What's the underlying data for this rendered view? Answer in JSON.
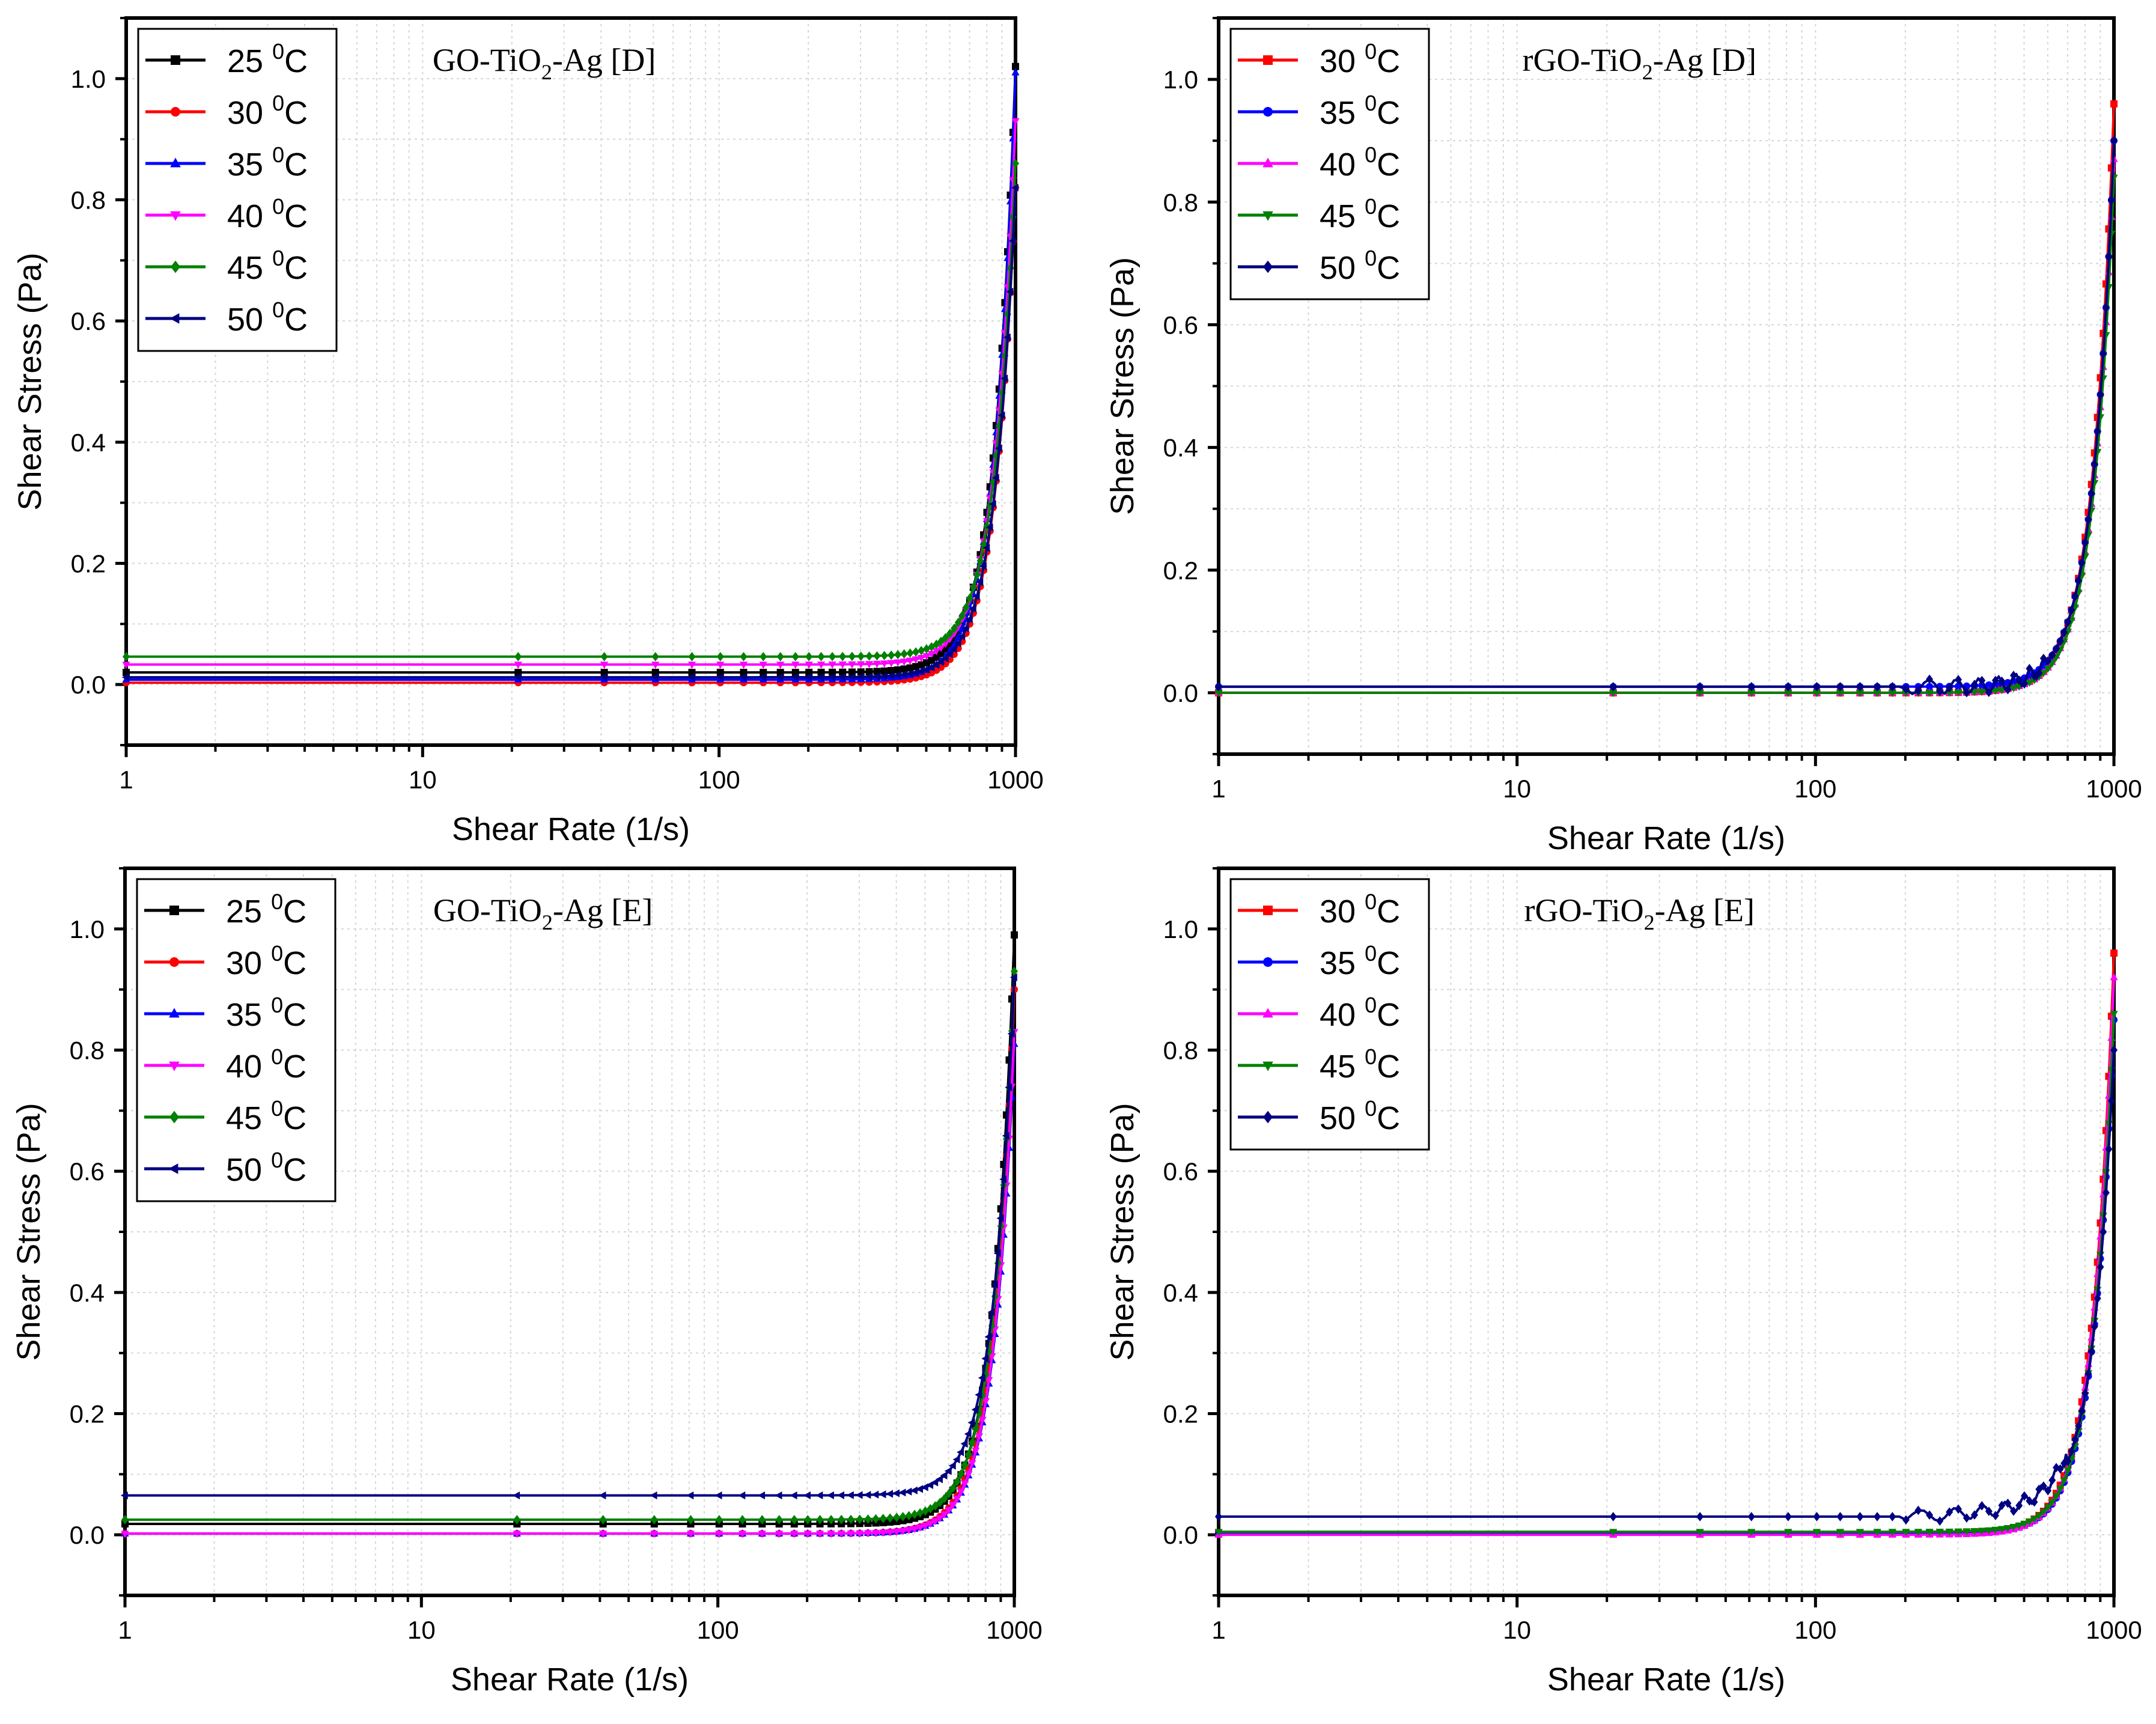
{
  "chart_data": [
    {
      "type": "line",
      "panel": "top-left",
      "title": "GO-TiO2-Ag [D]",
      "title_parts": [
        "GO-TiO",
        "2",
        "-Ag [D]"
      ],
      "xlabel": "Shear Rate (1/s)",
      "ylabel": "Shear Stress (Pa)",
      "xscale": "log",
      "xlim": [
        1,
        1000
      ],
      "ylim": [
        -0.1,
        1.1
      ],
      "xticks": [
        1,
        10,
        100,
        1000
      ],
      "xtick_labels": [
        "1",
        "10",
        "100",
        "1000"
      ],
      "yticks": [
        0.0,
        0.2,
        0.4,
        0.6,
        0.8,
        1.0
      ],
      "ytick_labels": [
        "0.0",
        "0.2",
        "0.4",
        "0.6",
        "0.8",
        "1.0"
      ],
      "legend_position": "top-left",
      "series": [
        {
          "name": "25 0C",
          "label_num": "25",
          "label_sup": "0",
          "label_unit": "C",
          "color": "#000000",
          "marker": "square",
          "base": 0.02,
          "end": 1.02
        },
        {
          "name": "30 0C",
          "label_num": "30",
          "label_sup": "0",
          "label_unit": "C",
          "color": "#ff0000",
          "marker": "circle",
          "base": 0.003,
          "end": 0.82
        },
        {
          "name": "35 0C",
          "label_num": "35",
          "label_sup": "0",
          "label_unit": "C",
          "color": "#0000ff",
          "marker": "triangle-up",
          "base": 0.008,
          "end": 1.01
        },
        {
          "name": "40 0C",
          "label_num": "40",
          "label_sup": "0",
          "label_unit": "C",
          "color": "#ff00ff",
          "marker": "triangle-down",
          "base": 0.033,
          "end": 0.93
        },
        {
          "name": "45 0C",
          "label_num": "45",
          "label_sup": "0",
          "label_unit": "C",
          "color": "#008000",
          "marker": "diamond",
          "base": 0.046,
          "end": 0.86
        },
        {
          "name": "50 0C",
          "label_num": "50",
          "label_sup": "0",
          "label_unit": "C",
          "color": "#000080",
          "marker": "triangle-left",
          "base": 0.012,
          "end": 0.82
        }
      ]
    },
    {
      "type": "line",
      "panel": "top-right",
      "title": "rGO-TiO2-Ag [D]",
      "title_parts": [
        "rGO-TiO",
        "2",
        "-Ag [D]"
      ],
      "xlabel": "Shear Rate (1/s)",
      "ylabel": "Shear Stress (Pa)",
      "xscale": "log",
      "xlim": [
        1,
        1000
      ],
      "ylim": [
        -0.1,
        1.1
      ],
      "xticks": [
        1,
        10,
        100,
        1000
      ],
      "xtick_labels": [
        "1",
        "10",
        "100",
        "1000"
      ],
      "yticks": [
        0.0,
        0.2,
        0.4,
        0.6,
        0.8,
        1.0
      ],
      "ytick_labels": [
        "0.0",
        "0.2",
        "0.4",
        "0.6",
        "0.8",
        "1.0"
      ],
      "legend_position": "top-left",
      "series": [
        {
          "name": "30 0C",
          "label_num": "30",
          "label_sup": "0",
          "label_unit": "C",
          "color": "#ff0000",
          "marker": "square",
          "base": 0.0,
          "end": 0.96
        },
        {
          "name": "35 0C",
          "label_num": "35",
          "label_sup": "0",
          "label_unit": "C",
          "color": "#0000ff",
          "marker": "circle",
          "base": 0.01,
          "end": 0.9
        },
        {
          "name": "40 0C",
          "label_num": "40",
          "label_sup": "0",
          "label_unit": "C",
          "color": "#ff00ff",
          "marker": "triangle-up",
          "base": 0.0,
          "end": 0.87
        },
        {
          "name": "45 0C",
          "label_num": "45",
          "label_sup": "0",
          "label_unit": "C",
          "color": "#008000",
          "marker": "triangle-down",
          "base": 0.0,
          "end": 0.84
        },
        {
          "name": "50 0C",
          "label_num": "50",
          "label_sup": "0",
          "label_unit": "C",
          "color": "#000080",
          "marker": "diamond",
          "base": 0.01,
          "end": 0.9
        }
      ]
    },
    {
      "type": "line",
      "panel": "bottom-left",
      "title": "GO-TiO2-Ag [E]",
      "title_parts": [
        "GO-TiO",
        "2",
        "-Ag [E]"
      ],
      "xlabel": "Shear Rate (1/s)",
      "ylabel": "Shear Stress (Pa)",
      "xscale": "log",
      "xlim": [
        1,
        1000
      ],
      "ylim": [
        -0.1,
        1.1
      ],
      "xticks": [
        1,
        10,
        100,
        1000
      ],
      "xtick_labels": [
        "1",
        "10",
        "100",
        "1000"
      ],
      "yticks": [
        0.0,
        0.2,
        0.4,
        0.6,
        0.8,
        1.0
      ],
      "ytick_labels": [
        "0.0",
        "0.2",
        "0.4",
        "0.6",
        "0.8",
        "1.0"
      ],
      "legend_position": "top-left",
      "series": [
        {
          "name": "25 0C",
          "label_num": "25",
          "label_sup": "0",
          "label_unit": "C",
          "color": "#000000",
          "marker": "square",
          "base": 0.018,
          "end": 0.99
        },
        {
          "name": "30 0C",
          "label_num": "30",
          "label_sup": "0",
          "label_unit": "C",
          "color": "#ff0000",
          "marker": "circle",
          "base": 0.002,
          "end": 0.9
        },
        {
          "name": "35 0C",
          "label_num": "35",
          "label_sup": "0",
          "label_unit": "C",
          "color": "#0000ff",
          "marker": "triangle-up",
          "base": 0.002,
          "end": 0.81
        },
        {
          "name": "40 0C",
          "label_num": "40",
          "label_sup": "0",
          "label_unit": "C",
          "color": "#ff00ff",
          "marker": "triangle-down",
          "base": 0.002,
          "end": 0.83
        },
        {
          "name": "45 0C",
          "label_num": "45",
          "label_sup": "0",
          "label_unit": "C",
          "color": "#008000",
          "marker": "diamond",
          "base": 0.025,
          "end": 0.93
        },
        {
          "name": "50 0C",
          "label_num": "50",
          "label_sup": "0",
          "label_unit": "C",
          "color": "#000080",
          "marker": "triangle-left",
          "base": 0.065,
          "end": 0.92
        }
      ]
    },
    {
      "type": "line",
      "panel": "bottom-right",
      "title": "rGO-TiO2-Ag [E]",
      "title_parts": [
        "rGO-TiO",
        "2",
        "-Ag [E]"
      ],
      "xlabel": "Shear Rate (1/s)",
      "ylabel": "Shear Stress (Pa)",
      "xscale": "log",
      "xlim": [
        1,
        1000
      ],
      "ylim": [
        -0.1,
        1.1
      ],
      "xticks": [
        1,
        10,
        100,
        1000
      ],
      "xtick_labels": [
        "1",
        "10",
        "100",
        "1000"
      ],
      "yticks": [
        0.0,
        0.2,
        0.4,
        0.6,
        0.8,
        1.0
      ],
      "ytick_labels": [
        "0.0",
        "0.2",
        "0.4",
        "0.6",
        "0.8",
        "1.0"
      ],
      "legend_position": "top-left",
      "series": [
        {
          "name": "30 0C",
          "label_num": "30",
          "label_sup": "0",
          "label_unit": "C",
          "color": "#ff0000",
          "marker": "square",
          "base": 0.002,
          "end": 0.96
        },
        {
          "name": "35 0C",
          "label_num": "35",
          "label_sup": "0",
          "label_unit": "C",
          "color": "#0000ff",
          "marker": "circle",
          "base": 0.002,
          "end": 0.85
        },
        {
          "name": "40 0C",
          "label_num": "40",
          "label_sup": "0",
          "label_unit": "C",
          "color": "#ff00ff",
          "marker": "triangle-up",
          "base": 0.0,
          "end": 0.92
        },
        {
          "name": "45 0C",
          "label_num": "45",
          "label_sup": "0",
          "label_unit": "C",
          "color": "#008000",
          "marker": "triangle-down",
          "base": 0.005,
          "end": 0.86
        },
        {
          "name": "50 0C",
          "label_num": "50",
          "label_sup": "0",
          "label_unit": "C",
          "color": "#000080",
          "marker": "diamond",
          "base": 0.03,
          "end": 0.8
        }
      ]
    }
  ]
}
